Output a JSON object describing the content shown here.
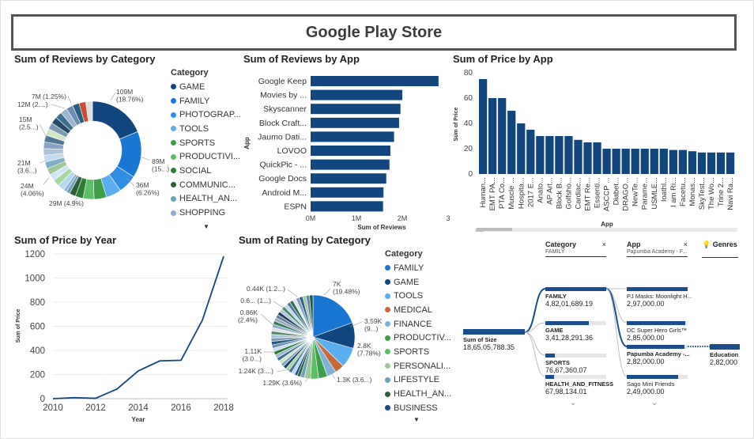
{
  "dashboard": {
    "title": "Google Play Store"
  },
  "donut": {
    "title": "Sum of Reviews by Category",
    "legend_title": "Category",
    "legend_items": [
      "GAME",
      "FAMILY",
      "PHOTOGRAP...",
      "TOOLS",
      "SPORTS",
      "PRODUCTIVI...",
      "SOCIAL",
      "COMMUNIC...",
      "HEALTH_AN...",
      "SHOPPING"
    ],
    "labels": [
      {
        "text": "109M\n(18.76%)"
      },
      {
        "text": "89M\n(15...)"
      },
      {
        "text": "36M\n(6.26%)"
      },
      {
        "text": "29M (4.9%)"
      },
      {
        "text": "24M\n(4.06%)"
      },
      {
        "text": "21M\n(3.6...)"
      },
      {
        "text": "15M\n(2.5...)"
      },
      {
        "text": "12M (2....)"
      },
      {
        "text": "7M (1.25%)"
      }
    ]
  },
  "reviews_by_app": {
    "title": "Sum of Reviews by App",
    "ylabel": "App",
    "xlabel": "Sum of Reviews",
    "ticks": [
      "0M",
      "1M",
      "2M",
      "3"
    ]
  },
  "price_by_app": {
    "title": "Sum of Price by App",
    "ylabel": "Sum of Price",
    "xlabel": "App",
    "ticks": [
      "0",
      "20",
      "40",
      "60",
      "80"
    ]
  },
  "price_by_year": {
    "title": "Sum of Price by Year",
    "ylabel": "Sum of Price",
    "xlabel": "Year",
    "yticks": [
      "0",
      "200",
      "400",
      "600",
      "800",
      "1000",
      "1200"
    ],
    "xticks": [
      "2010",
      "2012",
      "2014",
      "2016",
      "2018"
    ]
  },
  "pie": {
    "title": "Sum of Rating by Category",
    "legend_title": "Category",
    "legend_items": [
      "FAMILY",
      "GAME",
      "TOOLS",
      "MEDICAL",
      "FINANCE",
      "PRODUCTIV...",
      "SPORTS",
      "PERSONALI...",
      "LIFESTYLE",
      "HEALTH_AN...",
      "BUSINESS"
    ],
    "labels": [
      {
        "text": "7K\n(19.48%)"
      },
      {
        "text": "3.59K\n(9...)"
      },
      {
        "text": "2.8K\n(7.78%)"
      },
      {
        "text": "1.3K (3.6...)"
      },
      {
        "text": "1.29K (3.6%)"
      },
      {
        "text": "1.24K (3....)"
      },
      {
        "text": "1.11K\n(3.0...)"
      },
      {
        "text": "0.86K\n(2.4%)"
      },
      {
        "text": "0.6... (1...)"
      },
      {
        "text": "0.44K (1.2...)"
      }
    ]
  },
  "decomp_tree": {
    "col1_header": "Category",
    "col1_filter": "FAMILY",
    "col2_header": "App",
    "col2_filter": "Papumba Academy - F...",
    "col3_header": "Genres",
    "root": {
      "name": "Sum of Size",
      "value": "18,65,05,788.35"
    },
    "categories": [
      {
        "name": "FAMILY",
        "value": "4,82,01,689.19",
        "fraction": 1.0
      },
      {
        "name": "GAME",
        "value": "3,41,28,291.36",
        "fraction": 0.71
      },
      {
        "name": "SPORTS",
        "value": "76,67,360.07",
        "fraction": 0.16
      },
      {
        "name": "HEALTH_AND_FITNESS",
        "value": "67,98,134.01",
        "fraction": 0.14
      }
    ],
    "apps": [
      {
        "name": "PJ Masks: Moonlight H...",
        "value": "2,97,000.00",
        "fraction": 1.0
      },
      {
        "name": "DC Super Hero Girls™",
        "value": "2,85,000.00",
        "fraction": 0.96
      },
      {
        "name": "Papumba Academy -...",
        "value": "2,82,000.00",
        "fraction": 0.95
      },
      {
        "name": "Sago Mini Friends",
        "value": "2,49,000.00",
        "fraction": 0.84
      }
    ],
    "genre": {
      "name": "Education",
      "value": "2,82,000"
    }
  },
  "chart_data": [
    {
      "type": "pie",
      "title": "Sum of Reviews by Category",
      "categories": [
        "GAME",
        "FAMILY",
        "PHOTOGRAP...",
        "TOOLS",
        "SPORTS",
        "PRODUCTIVI...",
        "SOCIAL",
        "COMMUNIC...",
        "HEALTH_AN...",
        "SHOPPING"
      ],
      "values": [
        109,
        89,
        36,
        29,
        24,
        21,
        15,
        12,
        7,
        6
      ],
      "other_total": 232,
      "colors": [
        "#11467f",
        "#1976d2",
        "#2f8de4",
        "#5aaef0",
        "#3f9f48",
        "#5cbf66",
        "#2e7d32",
        "#2f5f3a",
        "#6aa3b8",
        "#8fa8d6"
      ],
      "other_colors": [
        "#b8d8f0",
        "#a6d6a0",
        "#cfe7f7",
        "#9fc79a",
        "#7fb0c8",
        "#c6dbef",
        "#aac3d9",
        "#87a4c4",
        "#4f7694",
        "#d0e8c8",
        "#7c9ab2",
        "#244a6a",
        "#3c6e8f",
        "#9bb7d0",
        "#6a8fb0",
        "#2a5c84",
        "#c94f3a",
        "#e0e0e0"
      ]
    },
    {
      "type": "bar",
      "title": "Sum of Reviews by App",
      "orientation": "horizontal",
      "categories": [
        "Google Keep",
        "Movies by ...",
        "Skyscanner",
        "Block Craft...",
        "Jaumo Dati...",
        "LOVOO",
        "QuickPic - ...",
        "Google Docs",
        "Android M...",
        "ESPN"
      ],
      "values": [
        2.79,
        2.0,
        1.96,
        1.93,
        1.82,
        1.74,
        1.72,
        1.65,
        1.59,
        1.58
      ],
      "xlim": [
        0,
        3
      ],
      "color": "#11467f"
    },
    {
      "type": "bar",
      "title": "Sum of Price by App",
      "categories": [
        "Human...",
        "EMT PA...",
        "PTA Co...",
        "Muscle ...",
        "Hospita...",
        "2017 E...",
        "Anato...",
        "AP Art...",
        "Block B...",
        "Golfsho...",
        "Cardiac...",
        "EMT Re...",
        "Essenti...",
        "ASCCP ...",
        "Diabet...",
        "DRAGO...",
        "NewTe...",
        "Parame...",
        "USMLE...",
        "Ioathl...",
        "I am Ri...",
        "Facetu...",
        "Monas...",
        "SkyTest...",
        "The Wo...",
        "Trine 2...",
        "Navi Ra..."
      ],
      "values": [
        75,
        60,
        60,
        50,
        40,
        35,
        30,
        30,
        30,
        30,
        27,
        25,
        25,
        20,
        20,
        20,
        20,
        20,
        20,
        20,
        19,
        19,
        18,
        17,
        17,
        17,
        17
      ],
      "ylim": [
        0,
        80
      ],
      "color": "#11467f"
    },
    {
      "type": "line",
      "title": "Sum of Price by Year",
      "x": [
        2010,
        2011,
        2012,
        2013,
        2014,
        2015,
        2016,
        2017,
        2018
      ],
      "y": [
        0,
        8,
        3,
        80,
        230,
        313,
        318,
        650,
        1180
      ],
      "ylim": [
        0,
        1200
      ],
      "xlim": [
        2010,
        2018
      ],
      "color": "#11467f"
    },
    {
      "type": "pie",
      "title": "Sum of Rating by Category",
      "categories": [
        "FAMILY",
        "GAME",
        "TOOLS",
        "MEDICAL",
        "FINANCE",
        "PRODUCTIV...",
        "SPORTS",
        "PERSONALI...",
        "LIFESTYLE",
        "HEALTH_AN...",
        "BUSINESS"
      ],
      "values": [
        7000,
        3590,
        2800,
        1300,
        1290,
        1240,
        1110,
        860,
        600,
        440,
        380
      ],
      "other_total": 15390,
      "colors": [
        "#1976d2",
        "#11467f",
        "#5aaef0",
        "#c6693a",
        "#7fb0d8",
        "#3f9f48",
        "#5cbf66",
        "#9fc79a",
        "#6aa3b8",
        "#2f5f3a",
        "#1a4e8a"
      ],
      "other_colors": [
        "#b8d8f0",
        "#4f7694",
        "#a6d6a0",
        "#244a6a",
        "#87a4c4",
        "#d0e8c8",
        "#3c6e8f",
        "#9bb7d0",
        "#2e7d32",
        "#c6dbef",
        "#6a8fb0",
        "#2a5c84",
        "#7c9ab2",
        "#aac3d9",
        "#5c8a6a",
        "#e0e0e0",
        "#88b0d0",
        "#3a7a5a",
        "#9ab",
        "#657a99",
        "#1f3f5f",
        "#b0c4de",
        "#4a8f6a",
        "#c0d9e8",
        "#5478a0",
        "#2d6f4f",
        "#d9e6f2",
        "#7fa0c0",
        "#3b5f80",
        "#a0c8a0",
        "#68829e",
        "#1e5a3e"
      ]
    }
  ]
}
